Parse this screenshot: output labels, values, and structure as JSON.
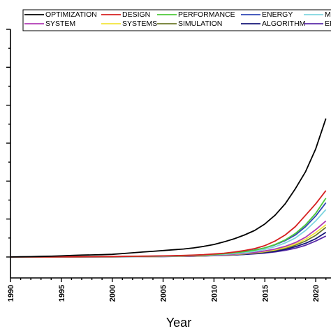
{
  "chart_data": {
    "type": "line",
    "xlabel": "Year",
    "ylabel": "",
    "xlim": [
      1990,
      2021.5
    ],
    "ylim": [
      0,
      600
    ],
    "x_ticks": [
      "1990",
      "1995",
      "2000",
      "2005",
      "2010",
      "2015",
      "2020"
    ],
    "grid": false,
    "legend_position": "top",
    "x": [
      1990,
      1991,
      1992,
      1993,
      1994,
      1995,
      1996,
      1997,
      1998,
      1999,
      2000,
      2001,
      2002,
      2003,
      2004,
      2005,
      2006,
      2007,
      2008,
      2009,
      2010,
      2011,
      2012,
      2013,
      2014,
      2015,
      2016,
      2017,
      2018,
      2019,
      2020,
      2021
    ],
    "series": [
      {
        "name": "OPTIMIZATION",
        "color": "#000000",
        "values": [
          0,
          0.5,
          1,
          1.5,
          2,
          3,
          4,
          5,
          5.5,
          6,
          7,
          9,
          11,
          13,
          15,
          17,
          19,
          21,
          24,
          28,
          33,
          40,
          48,
          58,
          70,
          87,
          110,
          140,
          180,
          225,
          285,
          365
        ]
      },
      {
        "name": "DESIGN",
        "color": "#d62020",
        "values": [
          0,
          0,
          0,
          0,
          0,
          0.2,
          0.4,
          0.6,
          0.8,
          1,
          1.2,
          1.5,
          1.8,
          2.2,
          2.6,
          3,
          3.5,
          4,
          5,
          6,
          8,
          10,
          13,
          17,
          22,
          30,
          42,
          58,
          80,
          110,
          140,
          175
        ]
      },
      {
        "name": "PERFORMANCE",
        "color": "#4ec93a",
        "values": [
          0,
          0,
          0,
          0,
          0,
          0.1,
          0.2,
          0.4,
          0.6,
          0.8,
          1,
          1.2,
          1.5,
          1.8,
          2.1,
          2.5,
          3,
          3.5,
          4.2,
          5,
          6.5,
          8.5,
          11,
          14,
          18,
          24,
          33,
          45,
          62,
          85,
          115,
          155
        ]
      },
      {
        "name": "ENERGY",
        "color": "#2f47b5",
        "values": [
          0,
          0,
          0,
          0,
          0,
          0.1,
          0.2,
          0.4,
          0.6,
          0.8,
          1,
          1.2,
          1.5,
          1.8,
          2.2,
          2.6,
          3.1,
          3.7,
          4.5,
          5.5,
          7,
          9,
          11.5,
          14.5,
          18.5,
          24,
          32,
          43,
          58,
          80,
          108,
          143
        ]
      },
      {
        "name": "MODEL",
        "color": "#7fd6e0",
        "values": [
          0,
          0,
          0,
          0,
          0,
          0.1,
          0.2,
          0.3,
          0.5,
          0.6,
          0.8,
          1,
          1.2,
          1.5,
          1.8,
          2.1,
          2.5,
          3,
          3.6,
          4.3,
          5.5,
          7,
          9,
          11.5,
          15,
          20,
          27,
          37,
          50,
          70,
          95,
          125
        ]
      },
      {
        "name": "SYSTEM",
        "color": "#b03ab5",
        "values": [
          0,
          0,
          0,
          0,
          0,
          0.1,
          0.2,
          0.3,
          0.4,
          0.5,
          0.6,
          0.8,
          1,
          1.2,
          1.5,
          1.8,
          2.1,
          2.5,
          3,
          3.6,
          4.5,
          5.7,
          7.3,
          9.3,
          12,
          16,
          21,
          28,
          38,
          52,
          72,
          95
        ]
      },
      {
        "name": "SYSTEMS",
        "color": "#f2e43a",
        "values": [
          0,
          0,
          0,
          0,
          0,
          0.1,
          0.2,
          0.3,
          0.4,
          0.5,
          0.6,
          0.7,
          0.9,
          1.1,
          1.3,
          1.6,
          1.9,
          2.3,
          2.8,
          3.4,
          4.2,
          5.3,
          6.7,
          8.5,
          11,
          14.5,
          19,
          25,
          34,
          47,
          64,
          85
        ]
      },
      {
        "name": "SIMULATION",
        "color": "#6b7a2a",
        "values": [
          0,
          0,
          0,
          0,
          0,
          0.1,
          0.2,
          0.3,
          0.4,
          0.5,
          0.6,
          0.7,
          0.9,
          1.1,
          1.3,
          1.6,
          1.9,
          2.3,
          2.8,
          3.4,
          4.2,
          5.2,
          6.5,
          8.2,
          10.5,
          13.5,
          17.5,
          23,
          31,
          42,
          57,
          78
        ]
      },
      {
        "name": "ALGORITHM",
        "color": "#141478",
        "values": [
          0,
          0,
          0,
          0,
          0,
          0.1,
          0.2,
          0.3,
          0.4,
          0.5,
          0.6,
          0.7,
          0.8,
          1,
          1.2,
          1.4,
          1.7,
          2,
          2.4,
          2.9,
          3.6,
          4.5,
          5.6,
          7,
          9,
          11.5,
          15,
          20,
          27,
          36,
          48,
          65
        ]
      },
      {
        "name": "EFFICIENCY",
        "color": "#5a2aa8",
        "values": [
          0,
          0,
          0,
          0,
          0,
          0,
          0.1,
          0.2,
          0.3,
          0.4,
          0.5,
          0.6,
          0.7,
          0.9,
          1.1,
          1.3,
          1.6,
          1.9,
          2.3,
          2.8,
          3.5,
          4.3,
          5.3,
          6.6,
          8.3,
          10.5,
          13.5,
          17.5,
          23,
          31,
          42,
          55
        ]
      }
    ]
  }
}
